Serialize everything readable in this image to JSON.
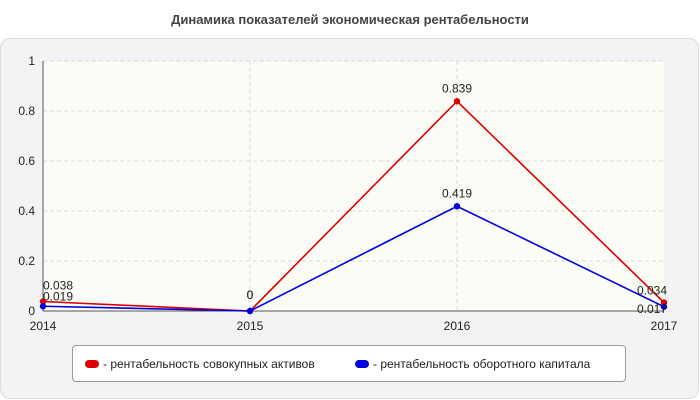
{
  "chart_data": {
    "type": "line",
    "title": "Динамика показателей экономическая рентабельности",
    "x": [
      "2014",
      "2015",
      "2016",
      "2017"
    ],
    "xlabel": "",
    "ylabel": "",
    "ylim": [
      0,
      1
    ],
    "yticks": [
      "0",
      "0.2",
      "0.4",
      "0.6",
      "0.8",
      "1"
    ],
    "grid": true,
    "legend_position": "bottom",
    "series": [
      {
        "name": "- рентабельность совокупных активов",
        "color": "#dd0000",
        "values": [
          0.038,
          0,
          0.839,
          0.034
        ],
        "labels": [
          "0.038",
          "0",
          "0.839",
          "0.034"
        ]
      },
      {
        "name": "- рентабельность оборотного капитала",
        "color": "#0000dd",
        "values": [
          0.019,
          0,
          0.419,
          0.017
        ],
        "labels": [
          "0.019",
          "0",
          "0.419",
          "0.017"
        ]
      }
    ]
  }
}
